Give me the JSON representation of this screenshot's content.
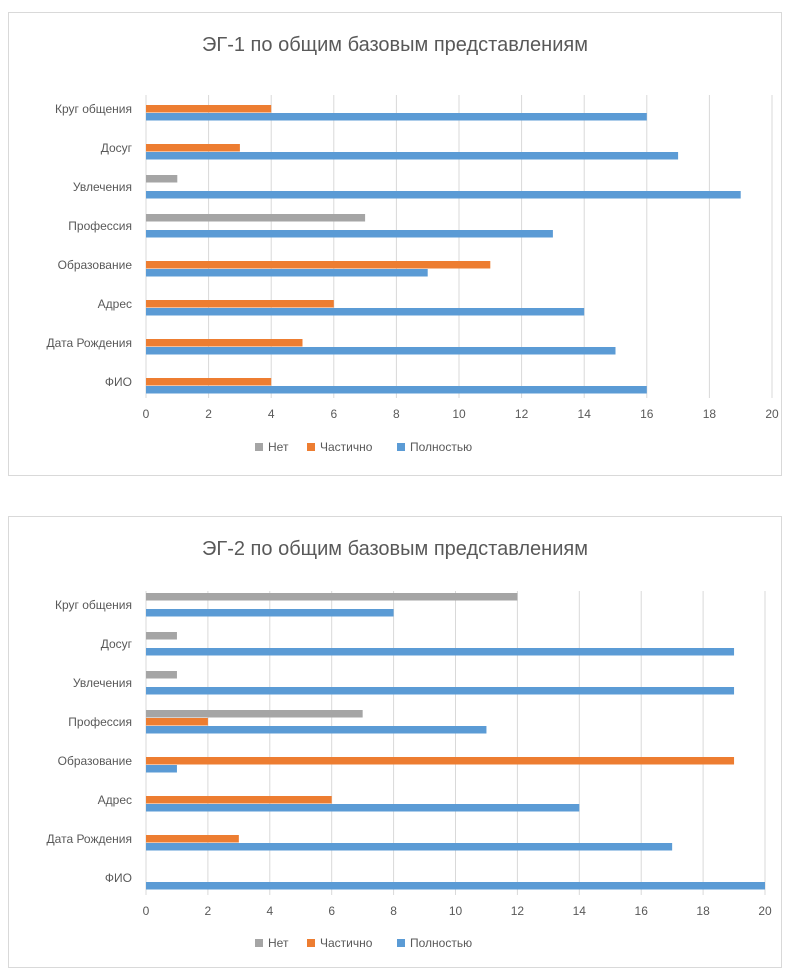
{
  "colors": {
    "Нет": "#a5a5a5",
    "Частично": "#ed7d31",
    "Полностью": "#5b9bd5"
  },
  "chart_data": [
    {
      "type": "bar",
      "orientation": "horizontal",
      "title": "ЭГ-1 по общим базовым представлениям",
      "categories": [
        "Круг общения",
        "Досуг",
        "Увлечения",
        "Профессия",
        "Образование",
        "Адрес",
        "Дата Рождения",
        "ФИО"
      ],
      "series": [
        {
          "name": "Нет",
          "values": [
            0,
            0,
            1,
            7,
            0,
            0,
            0,
            0
          ]
        },
        {
          "name": "Частично",
          "values": [
            4,
            3,
            0,
            0,
            11,
            6,
            5,
            4
          ]
        },
        {
          "name": "Полностью",
          "values": [
            16,
            17,
            19,
            13,
            9,
            14,
            15,
            16
          ]
        }
      ],
      "xlim": [
        0,
        20
      ],
      "xticks": [
        "0",
        "2",
        "4",
        "6",
        "8",
        "10",
        "12",
        "14",
        "16",
        "18",
        "20"
      ],
      "grid": true,
      "legend": "bottom"
    },
    {
      "type": "bar",
      "orientation": "horizontal",
      "title": "ЭГ-2 по общим базовым представлениям",
      "categories": [
        "Круг общения",
        "Досуг",
        "Увлечения",
        "Профессия",
        "Образование",
        "Адрес",
        "Дата Рождения",
        "ФИО"
      ],
      "series": [
        {
          "name": "Нет",
          "values": [
            12,
            1,
            1,
            7,
            0,
            0,
            0,
            0
          ]
        },
        {
          "name": "Частично",
          "values": [
            0,
            0,
            0,
            2,
            19,
            6,
            3,
            0
          ]
        },
        {
          "name": "Полностью",
          "values": [
            8,
            19,
            19,
            11,
            1,
            14,
            17,
            20
          ]
        }
      ],
      "xlim": [
        0,
        20
      ],
      "xticks": [
        "0",
        "2",
        "4",
        "6",
        "8",
        "10",
        "12",
        "14",
        "16",
        "18",
        "20"
      ],
      "grid": true,
      "legend": "bottom"
    }
  ]
}
